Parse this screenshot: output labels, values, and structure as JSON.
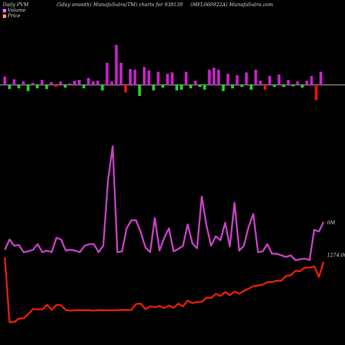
{
  "header": {
    "left": "Daily PVM",
    "center": "(5day smooth) MunafaSutra(TM) charts for 938139",
    "right": "(MFL060922A) MunafaSutra.com"
  },
  "legend": [
    {
      "label": "Volume",
      "color": "#ff66ff"
    },
    {
      "label": "Price",
      "color": "#ff9966"
    }
  ],
  "colors": {
    "volume_up": "#cc22cc",
    "volume_down_green": "#22dd22",
    "volume_down_red": "#ee1111",
    "volume_line": "#cc44cc",
    "price_line": "#ee2200",
    "zero_line": "#cccccc"
  },
  "chart_data": {
    "type": "line",
    "series": [
      {
        "name": "Volume",
        "values": [
          3.3,
          4.6,
          3.8,
          3.9,
          3.0,
          3.1,
          3.3,
          4.0,
          3.0,
          3.2,
          3.0,
          4.8,
          4.6,
          3.2,
          3.3,
          3.2,
          3.0,
          3.8,
          4.0,
          4.0,
          3.0,
          3.8,
          12.0,
          16.3,
          3.0,
          3.1,
          6.0,
          7.0,
          7.0,
          5.5,
          3.6,
          3.0,
          7.3,
          3.2,
          4.8,
          6.0,
          3.1,
          3.4,
          3.8,
          6.5,
          4.1,
          3.5,
          10.0,
          6.4,
          3.8,
          5.0,
          4.5,
          6.7,
          3.7,
          9.2,
          3.2,
          3.8,
          6.2,
          7.8,
          3.0,
          3.1,
          4.0,
          2.8,
          2.8,
          2.6,
          2.4,
          2.6,
          2.0,
          2.1,
          2.2,
          2.0,
          5.8,
          5.6,
          6.8
        ]
      },
      {
        "name": "Price",
        "values": [
          1274.96,
          1264.01,
          1264.04,
          1264.61,
          1264.67,
          1265.39,
          1266.26,
          1266.18,
          1266.19,
          1266.96,
          1266.09,
          1266.92,
          1266.9,
          1266.06,
          1265.98,
          1266.02,
          1266.05,
          1266.04,
          1266.02,
          1265.98,
          1266.06,
          1266.02,
          1266.02,
          1266.03,
          1266.05,
          1266.1,
          1266.06,
          1266.11,
          1267.09,
          1267.14,
          1266.21,
          1266.68,
          1266.55,
          1266.74,
          1266.42,
          1266.83,
          1266.45,
          1267.15,
          1266.71,
          1267.66,
          1267.25,
          1267.42,
          1267.47,
          1268.15,
          1268.11,
          1268.8,
          1268.45,
          1269.11,
          1268.58,
          1269.17,
          1268.86,
          1269.31,
          1269.68,
          1270.09,
          1270.2,
          1270.37,
          1270.79,
          1270.79,
          1271.03,
          1271.02,
          1271.82,
          1271.95,
          1272.69,
          1272.63,
          1273.22,
          1273.23,
          1273.46,
          1271.65,
          1274.21
        ]
      },
      {
        "name": "Volume bars",
        "values": [
          2.4,
          -1.2,
          1.6,
          -1.0,
          1.0,
          -1.8,
          0.6,
          -1.0,
          1.4,
          -1.2,
          0.8,
          -0.6,
          1.0,
          -0.8,
          0.4,
          1.2,
          1.4,
          -1.0,
          2.0,
          1.0,
          1.2,
          -1.6,
          6.4,
          1.0,
          11.6,
          6.4,
          -2.2,
          4.6,
          4.4,
          -3.2,
          5.2,
          4.2,
          -1.6,
          3.8,
          -0.8,
          3.2,
          3.6,
          -1.6,
          -1.4,
          3.8,
          -1.0,
          1.2,
          -0.6,
          -1.4,
          4.4,
          5.0,
          4.4,
          -1.8,
          3.2,
          -1.0,
          2.8,
          -0.6,
          3.6,
          -1.4,
          4.4,
          1.2,
          -1.4,
          2.6,
          -0.6,
          3.0,
          -0.6,
          1.4,
          -0.4,
          1.0,
          -0.8,
          1.2,
          2.6,
          -4.4,
          3.8
        ]
      }
    ]
  },
  "labels": {
    "volume_end": "0M",
    "price_end": "1274.00"
  }
}
